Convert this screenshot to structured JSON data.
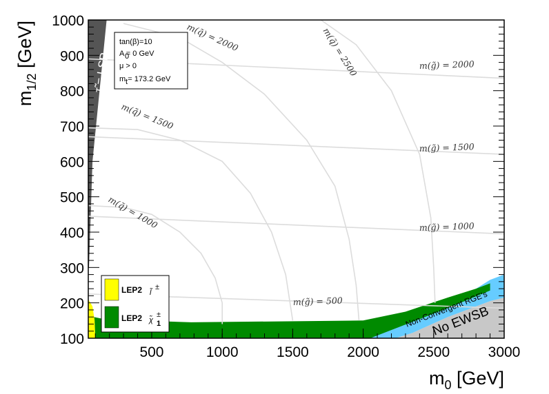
{
  "chart_data": {
    "type": "area",
    "title": "",
    "xlabel": "m",
    "xlabel_sub": "0",
    "xlabel_unit": " [GeV]",
    "ylabel": "m",
    "ylabel_sub": "1/2",
    "ylabel_unit": " [GeV]",
    "xlim": [
      50,
      3000
    ],
    "ylim": [
      100,
      1000
    ],
    "x_ticks": [
      500,
      1000,
      1500,
      2000,
      2500,
      3000
    ],
    "y_ticks": [
      100,
      200,
      300,
      400,
      500,
      600,
      700,
      800,
      900,
      1000
    ],
    "grid": false,
    "colors": {
      "lep2_slepton": "#ffff00",
      "lep2_chargino": "#008a00",
      "stau_lsp": "#555555",
      "non_convergent": "#66ccff",
      "no_ewsb": "#c8c8c8",
      "contour": "#dcdcdc"
    },
    "info_box": {
      "lines": [
        "tan(β)=10",
        "A  = 0 GeV",
        "μ > 0",
        "m  = 173.2 GeV"
      ],
      "subs": [
        "",
        "0",
        "",
        "t"
      ]
    },
    "legend": {
      "position": "bottom-left",
      "entries": [
        {
          "label": "LEP2",
          "particle": "l̃",
          "particle_sup": "±",
          "particle_sub": "",
          "color": "#ffff00"
        },
        {
          "label": "LEP2",
          "particle": "χ̃",
          "particle_sup": "±",
          "particle_sub": "1",
          "color": "#008a00"
        }
      ]
    },
    "region_labels": {
      "stau_lsp": "τ̃ = LSP",
      "non_convergent": "Non-Convergent RGE's",
      "no_ewsb": "No EWSB"
    },
    "gluino_contours": [
      {
        "label": "m(g̃) = 500",
        "points": [
          [
            50,
            225
          ],
          [
            3000,
            185
          ]
        ]
      },
      {
        "label": "m(g̃) = 1000",
        "points": [
          [
            50,
            445
          ],
          [
            3000,
            395
          ]
        ]
      },
      {
        "label": "m(g̃) = 1500",
        "points": [
          [
            50,
            670
          ],
          [
            3000,
            620
          ]
        ]
      },
      {
        "label": "m(g̃) = 2000",
        "points": [
          [
            50,
            890
          ],
          [
            3000,
            835
          ]
        ]
      }
    ],
    "squark_contours": [
      {
        "label": "m(q̃) = 1000",
        "points": [
          [
            50,
            475
          ],
          [
            300,
            470
          ],
          [
            500,
            450
          ],
          [
            700,
            400
          ],
          [
            850,
            340
          ],
          [
            950,
            270
          ],
          [
            1000,
            200
          ],
          [
            1000,
            140
          ]
        ]
      },
      {
        "label": "m(q̃) = 1500",
        "points": [
          [
            50,
            695
          ],
          [
            400,
            690
          ],
          [
            700,
            660
          ],
          [
            1000,
            600
          ],
          [
            1200,
            510
          ],
          [
            1350,
            400
          ],
          [
            1450,
            280
          ],
          [
            1500,
            150
          ]
        ]
      },
      {
        "label": "m(q̃) = 2000",
        "points": [
          [
            300,
            990
          ],
          [
            700,
            950
          ],
          [
            1000,
            880
          ],
          [
            1300,
            790
          ],
          [
            1600,
            660
          ],
          [
            1800,
            530
          ],
          [
            1900,
            380
          ],
          [
            1950,
            250
          ],
          [
            1970,
            150
          ]
        ]
      },
      {
        "label": "m(q̃) = 2500",
        "points": [
          [
            1700,
            1000
          ],
          [
            1950,
            930
          ],
          [
            2200,
            800
          ],
          [
            2400,
            620
          ],
          [
            2480,
            440
          ],
          [
            2500,
            300
          ],
          [
            2510,
            200
          ]
        ]
      }
    ],
    "regions": {
      "stau_lsp": [
        [
          50,
          1000
        ],
        [
          180,
          1000
        ],
        [
          80,
          600
        ],
        [
          55,
          300
        ],
        [
          50,
          300
        ]
      ],
      "lep2_slepton": [
        [
          50,
          100
        ],
        [
          50,
          210
        ],
        [
          80,
          190
        ],
        [
          95,
          150
        ],
        [
          100,
          100
        ]
      ],
      "lep2_chargino": [
        [
          90,
          100
        ],
        [
          90,
          160
        ],
        [
          150,
          155
        ],
        [
          400,
          150
        ],
        [
          780,
          145
        ],
        [
          2000,
          150
        ],
        [
          2300,
          175
        ],
        [
          2600,
          215
        ],
        [
          2800,
          240
        ],
        [
          2900,
          255
        ],
        [
          2900,
          235
        ],
        [
          2600,
          185
        ],
        [
          2050,
          100
        ]
      ],
      "non_convergent": [
        [
          2000,
          100
        ],
        [
          2300,
          155
        ],
        [
          2600,
          205
        ],
        [
          2800,
          240
        ],
        [
          2900,
          265
        ],
        [
          3000,
          280
        ],
        [
          3000,
          215
        ],
        [
          2900,
          205
        ],
        [
          2600,
          160
        ],
        [
          2350,
          115
        ],
        [
          2230,
          100
        ]
      ],
      "no_ewsb": [
        [
          2230,
          100
        ],
        [
          2350,
          115
        ],
        [
          2600,
          160
        ],
        [
          2900,
          205
        ],
        [
          3000,
          215
        ],
        [
          3000,
          100
        ]
      ]
    }
  }
}
